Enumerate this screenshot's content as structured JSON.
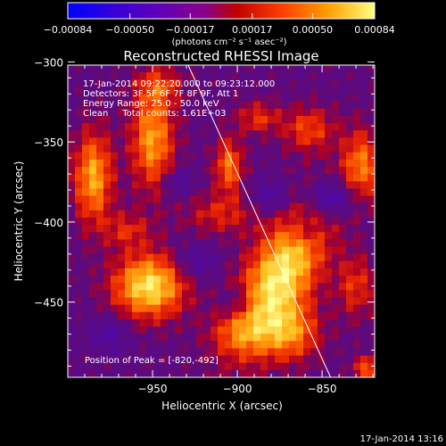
{
  "chart_data": {
    "type": "heatmap",
    "title": "Reconstructed RHESSI Image",
    "xlabel": "Heliocentric X (arcsec)",
    "ylabel": "Heliocentric Y (arcsec)",
    "xlim": [
      -1000,
      -819
    ],
    "ylim": [
      -497,
      -302
    ],
    "x_ticks": [
      -950,
      -900,
      -850
    ],
    "y_ticks": [
      -300,
      -350,
      -400,
      -450
    ],
    "colorbar": {
      "range": [
        -0.00084,
        0.00084
      ],
      "tick_values": [
        -0.00084,
        -0.0005,
        -0.00017,
        0.00017,
        0.0005,
        0.00084
      ],
      "tick_labels": [
        "-0.00084",
        "-0.00050",
        "-0.00017",
        "0.00017",
        "0.00050",
        "0.00084"
      ],
      "units_label": "(photons cm⁻² s⁻¹ asec⁻²)"
    },
    "info_lines": [
      "17-Jan-2014 09:22:20.000 to 09:23:12.000",
      "Detectors: 3F 5F 6F 7F 8F 9F, Att 1",
      "Energy Range: 25.0 - 50.0 keV",
      "Clean     Total counts: 1.61E+03"
    ],
    "peak_label": "Position of Peak = [-820,-492]",
    "peak_position": [
      -820,
      -492
    ],
    "limb_line": [
      [
        -929,
        -302
      ],
      [
        -845,
        -497
      ]
    ],
    "emission_sources": [
      {
        "x": -875,
        "y": -435,
        "sx": 14,
        "sy": 34,
        "rot": -25,
        "amp": 1.0
      },
      {
        "x": -868,
        "y": -470,
        "sx": 12,
        "sy": 12,
        "rot": 0,
        "amp": 0.55
      },
      {
        "x": -952,
        "y": -440,
        "sx": 15,
        "sy": 14,
        "rot": 0,
        "amp": 0.95
      },
      {
        "x": -950,
        "y": -348,
        "sx": 9,
        "sy": 22,
        "rot": 0,
        "amp": 0.72
      },
      {
        "x": -985,
        "y": -372,
        "sx": 8,
        "sy": 20,
        "rot": 0,
        "amp": 0.75
      },
      {
        "x": -905,
        "y": -365,
        "sx": 6,
        "sy": 12,
        "rot": 0,
        "amp": 0.6
      },
      {
        "x": -858,
        "y": -342,
        "sx": 11,
        "sy": 10,
        "rot": 0,
        "amp": 0.45
      },
      {
        "x": -827,
        "y": -365,
        "sx": 8,
        "sy": 16,
        "rot": 0,
        "amp": 0.6
      },
      {
        "x": -888,
        "y": -335,
        "sx": 9,
        "sy": 7,
        "rot": 0,
        "amp": 0.4
      },
      {
        "x": -965,
        "y": -405,
        "sx": 10,
        "sy": 8,
        "rot": 0,
        "amp": 0.35
      },
      {
        "x": -910,
        "y": -395,
        "sx": 15,
        "sy": 9,
        "rot": 0,
        "amp": 0.35
      },
      {
        "x": -830,
        "y": -440,
        "sx": 8,
        "sy": 14,
        "rot": 0,
        "amp": 0.4
      },
      {
        "x": -900,
        "y": -470,
        "sx": 12,
        "sy": 9,
        "rot": 0,
        "amp": 0.3
      },
      {
        "x": -945,
        "y": -315,
        "sx": 10,
        "sy": 8,
        "rot": 0,
        "amp": 0.35
      },
      {
        "x": -823,
        "y": -492,
        "sx": 6,
        "sy": 6,
        "rot": 0,
        "amp": 0.55
      },
      {
        "x": -845,
        "y": -385,
        "sx": 10,
        "sy": 8,
        "rot": 0,
        "amp": -0.55
      },
      {
        "x": -880,
        "y": -385,
        "sx": 8,
        "sy": 8,
        "rot": 0,
        "amp": -0.35
      },
      {
        "x": -925,
        "y": -425,
        "sx": 9,
        "sy": 8,
        "rot": 0,
        "amp": -0.3
      },
      {
        "x": -975,
        "y": -470,
        "sx": 8,
        "sy": 8,
        "rot": 0,
        "amp": -0.3
      },
      {
        "x": -900,
        "y": -450,
        "sx": 7,
        "sy": 7,
        "rot": 0,
        "amp": -0.3
      },
      {
        "x": -860,
        "y": -405,
        "sx": 7,
        "sy": 7,
        "rot": 0,
        "amp": -0.3
      },
      {
        "x": -935,
        "y": -375,
        "sx": 6,
        "sy": 6,
        "rot": 0,
        "amp": -0.3
      }
    ]
  },
  "footer": {
    "timestamp": "17-Jan-2014 13:16"
  }
}
